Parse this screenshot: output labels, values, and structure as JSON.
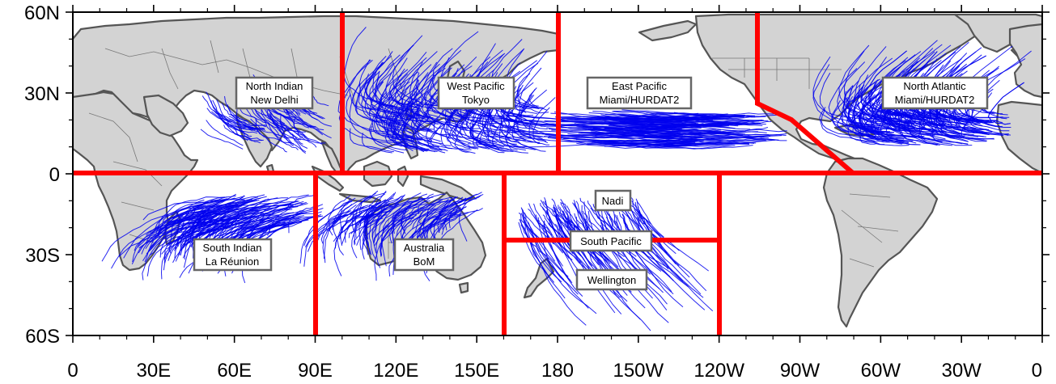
{
  "map": {
    "x_ticks": [
      "0",
      "30E",
      "60E",
      "90E",
      "120E",
      "150E",
      "180",
      "150W",
      "120W",
      "90W",
      "60W",
      "30W",
      "0"
    ],
    "y_ticks": [
      "60N",
      "30N",
      "0",
      "30S",
      "60S"
    ],
    "colors": {
      "land": "#d3d3d3",
      "coastline": "#555555",
      "ocean": "#ffffff",
      "tracks": "#0000ee",
      "basin_boundaries": "#ff0000"
    },
    "basins": [
      {
        "id": "north-indian",
        "line1": "North Indian",
        "line2": "New Delhi"
      },
      {
        "id": "west-pacific",
        "line1": "West Pacific",
        "line2": "Tokyo"
      },
      {
        "id": "east-pacific",
        "line1": "East Pacific",
        "line2": "Miami/HURDAT2"
      },
      {
        "id": "north-atlantic",
        "line1": "North Atlantic",
        "line2": "Miami/HURDAT2"
      },
      {
        "id": "south-indian",
        "line1": "South Indian",
        "line2": "La Réunion"
      },
      {
        "id": "australia",
        "line1": "Australia",
        "line2": "BoM"
      },
      {
        "id": "nadi",
        "line1": "Nadi",
        "line2": ""
      },
      {
        "id": "south-pacific",
        "line1": "South Pacific",
        "line2": ""
      },
      {
        "id": "wellington",
        "line1": "Wellington",
        "line2": ""
      }
    ]
  }
}
